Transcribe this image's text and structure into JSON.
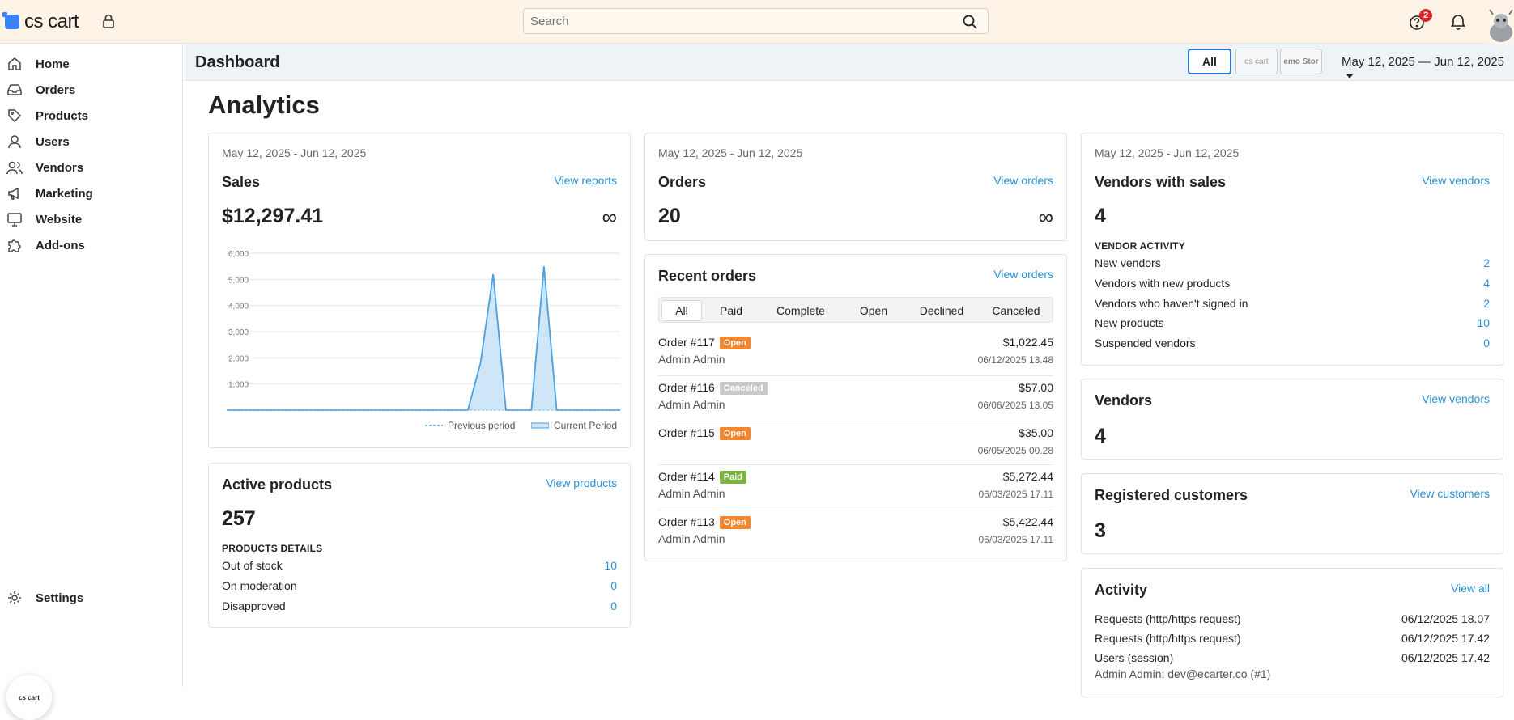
{
  "topbar": {
    "logo": "cs cart",
    "search_placeholder": "Search",
    "notifications_badge": "2"
  },
  "sidebar": {
    "items": [
      {
        "label": "Home",
        "icon": "home-icon"
      },
      {
        "label": "Orders",
        "icon": "inbox-icon"
      },
      {
        "label": "Products",
        "icon": "tag-icon"
      },
      {
        "label": "Users",
        "icon": "user-icon"
      },
      {
        "label": "Vendors",
        "icon": "users-icon"
      },
      {
        "label": "Marketing",
        "icon": "megaphone-icon"
      },
      {
        "label": "Website",
        "icon": "monitor-icon"
      },
      {
        "label": "Add-ons",
        "icon": "puzzle-icon"
      }
    ],
    "settings_label": "Settings",
    "mini_logo": "cs cart"
  },
  "header": {
    "title": "Dashboard",
    "stores": [
      "All",
      "cs cart",
      "emo Stor"
    ],
    "date_range": "May 12, 2025 — Jun 12, 2025"
  },
  "main": {
    "title": "Analytics",
    "sales": {
      "date": "May 12, 2025 - Jun 12, 2025",
      "title": "Sales",
      "link": "View reports",
      "value": "$12,297.41",
      "infinity": "∞",
      "legend_prev": "Previous period",
      "legend_curr": "Current Period"
    },
    "orders_card": {
      "date": "May 12, 2025 - Jun 12, 2025",
      "title": "Orders",
      "link": "View orders",
      "value": "20",
      "infinity": "∞"
    },
    "recent_orders": {
      "title": "Recent orders",
      "link": "View orders",
      "tabs": [
        "All",
        "Paid",
        "Complete",
        "Open",
        "Declined",
        "Canceled"
      ],
      "orders": [
        {
          "id": "Order #117",
          "status": "Open",
          "customer": "Admin Admin",
          "amount": "$1,022.45",
          "date": "06/12/2025 13.48"
        },
        {
          "id": "Order #116",
          "status": "Canceled",
          "customer": "Admin Admin",
          "amount": "$57.00",
          "date": "06/06/2025 13.05"
        },
        {
          "id": "Order #115",
          "status": "Open",
          "customer": "",
          "amount": "$35.00",
          "date": "06/05/2025 00.28"
        },
        {
          "id": "Order #114",
          "status": "Paid",
          "customer": "Admin Admin",
          "amount": "$5,272.44",
          "date": "06/03/2025 17.11"
        },
        {
          "id": "Order #113",
          "status": "Open",
          "customer": "Admin Admin",
          "amount": "$5,422.44",
          "date": "06/03/2025 17.11"
        }
      ]
    },
    "active_products": {
      "title": "Active products",
      "link": "View products",
      "value": "257",
      "section": "PRODUCTS DETAILS",
      "rows": [
        {
          "label": "Out of stock",
          "value": "10"
        },
        {
          "label": "On moderation",
          "value": "0"
        },
        {
          "label": "Disapproved",
          "value": "0"
        }
      ]
    },
    "vendors_with_sales": {
      "date": "May 12, 2025 - Jun 12, 2025",
      "title": "Vendors with sales",
      "link": "View vendors",
      "value": "4",
      "section": "VENDOR ACTIVITY",
      "rows": [
        {
          "label": "New vendors",
          "value": "2"
        },
        {
          "label": "Vendors with new products",
          "value": "4"
        },
        {
          "label": "Vendors who haven't signed in",
          "value": "2"
        },
        {
          "label": "New products",
          "value": "10"
        },
        {
          "label": "Suspended vendors",
          "value": "0"
        }
      ]
    },
    "vendors": {
      "title": "Vendors",
      "link": "View vendors",
      "value": "4"
    },
    "registered_customers": {
      "title": "Registered customers",
      "link": "View customers",
      "value": "3"
    },
    "activity": {
      "title": "Activity",
      "link": "View all",
      "rows": [
        {
          "label": "Requests (http/https request)",
          "value": "06/12/2025 18.07"
        },
        {
          "label": "Requests (http/https request)",
          "value": "06/12/2025 17.42"
        },
        {
          "label": "Users (session)",
          "value": "06/12/2025 17.42"
        }
      ],
      "sub": "Admin Admin; dev@ecarter.co (#1)"
    }
  },
  "chart_data": {
    "type": "area",
    "title": "",
    "xlabel": "",
    "ylabel": "",
    "ylim": [
      0,
      6000
    ],
    "yticks": [
      "1,000",
      "2,000",
      "3,000",
      "4,000",
      "5,000",
      "6,000"
    ],
    "legend": "bottom-right",
    "grid": true,
    "series": [
      {
        "name": "Previous period",
        "values": [
          0,
          0,
          0,
          0,
          0,
          0,
          0,
          0,
          0,
          0,
          0,
          0,
          0,
          0,
          0,
          0,
          0,
          0,
          0,
          0,
          0,
          0,
          0,
          0,
          0,
          0,
          0,
          0,
          0,
          0,
          0,
          0
        ]
      },
      {
        "name": "Current Period",
        "values": [
          0,
          0,
          0,
          0,
          0,
          0,
          0,
          0,
          0,
          0,
          0,
          0,
          0,
          0,
          0,
          0,
          0,
          0,
          0,
          0,
          1800,
          5200,
          0,
          0,
          0,
          5500,
          0,
          0,
          0,
          0,
          0,
          0
        ]
      }
    ],
    "colors": {
      "current": "#4a9fe0",
      "fill": "#cfe5f8"
    }
  }
}
